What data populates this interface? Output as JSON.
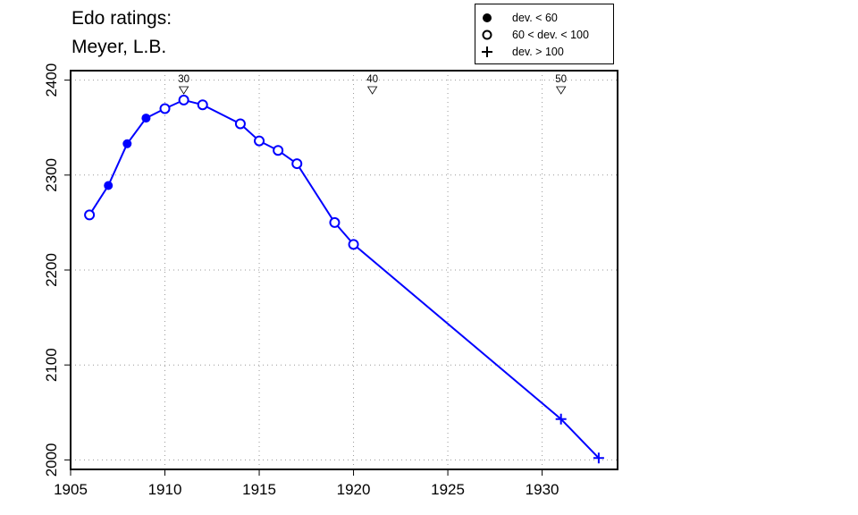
{
  "chart_data": {
    "type": "line",
    "title_lines": [
      "Edo ratings:",
      "Meyer, L.B."
    ],
    "xlabel": "",
    "ylabel": "",
    "xlim": [
      1905,
      1934
    ],
    "ylim": [
      1990,
      2410
    ],
    "x_ticks": [
      1905,
      1910,
      1915,
      1920,
      1925,
      1930
    ],
    "y_ticks": [
      2000,
      2100,
      2200,
      2300,
      2400
    ],
    "grid": true,
    "line_color": "#0000ff",
    "legend": {
      "placement": "top-right",
      "entries": [
        {
          "symbol": "filled-circle",
          "label": "dev. < 60"
        },
        {
          "symbol": "open-circle",
          "label": "60 < dev. < 100"
        },
        {
          "symbol": "plus",
          "label": "dev. > 100"
        }
      ]
    },
    "points": [
      {
        "x": 1906,
        "y": 2258,
        "marker": "open-circle"
      },
      {
        "x": 1907,
        "y": 2289,
        "marker": "filled-circle"
      },
      {
        "x": 1908,
        "y": 2333,
        "marker": "filled-circle"
      },
      {
        "x": 1909,
        "y": 2360,
        "marker": "filled-circle"
      },
      {
        "x": 1910,
        "y": 2370,
        "marker": "open-circle"
      },
      {
        "x": 1911,
        "y": 2379,
        "marker": "open-circle"
      },
      {
        "x": 1912,
        "y": 2374,
        "marker": "open-circle"
      },
      {
        "x": 1914,
        "y": 2354,
        "marker": "open-circle"
      },
      {
        "x": 1915,
        "y": 2336,
        "marker": "open-circle"
      },
      {
        "x": 1916,
        "y": 2326,
        "marker": "open-circle"
      },
      {
        "x": 1917,
        "y": 2312,
        "marker": "open-circle"
      },
      {
        "x": 1919,
        "y": 2250,
        "marker": "open-circle"
      },
      {
        "x": 1920,
        "y": 2227,
        "marker": "open-circle"
      },
      {
        "x": 1931,
        "y": 2043,
        "marker": "plus"
      },
      {
        "x": 1933,
        "y": 2002,
        "marker": "plus"
      }
    ],
    "age_markers": [
      {
        "x": 1911,
        "label": "30"
      },
      {
        "x": 1921,
        "label": "40"
      },
      {
        "x": 1931,
        "label": "50"
      }
    ]
  }
}
